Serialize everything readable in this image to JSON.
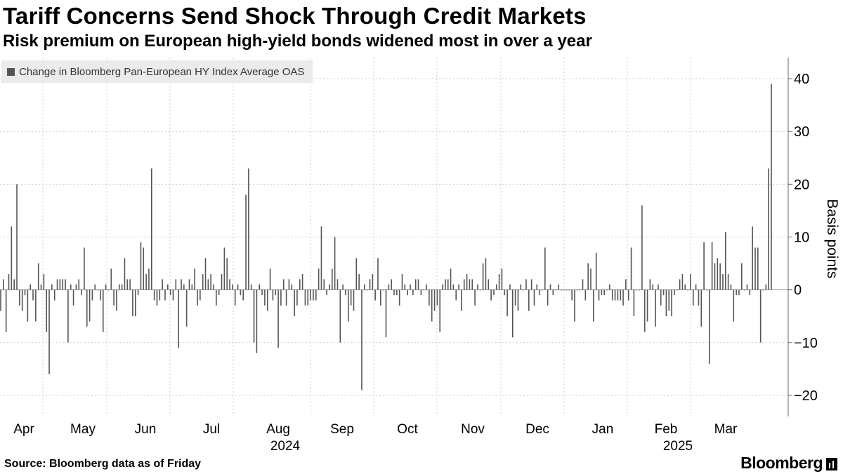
{
  "header": {
    "title": "Tariff Concerns Send Shock Through Credit Markets",
    "subtitle": "Risk premium on European high-yield bonds widened most in over a year"
  },
  "footer": {
    "source": "Source: Bloomberg data as of Friday",
    "brand": "Bloomberg"
  },
  "colors": {
    "bar": "#555555",
    "grid": "#cccccc",
    "axis": "#666666",
    "legend_bg": "#ebebeb"
  },
  "chart_data": {
    "type": "bar",
    "title": "Tariff Concerns Send Shock Through Credit Markets",
    "subtitle": "Risk premium on European high-yield bonds widened most in over a year",
    "series": [
      {
        "name": "Change in Bloomberg Pan-European HY Index Average OAS",
        "values": [
          -4,
          2,
          -8,
          3,
          12,
          2,
          20,
          -3,
          -4,
          -1,
          -6,
          1,
          -2,
          -6,
          5,
          1,
          3,
          -8,
          -16,
          1,
          -2,
          2,
          2,
          2,
          2,
          -10,
          1,
          -3,
          1,
          2,
          -1,
          8,
          -7,
          -6,
          -2,
          1,
          0,
          -2,
          -8,
          1,
          0,
          4,
          -3,
          -4,
          1,
          1,
          6,
          2,
          2,
          -5,
          -5,
          -1,
          9,
          8,
          3,
          4,
          23,
          -2,
          -3,
          -2,
          2,
          -2,
          1,
          -1,
          -2,
          2,
          -11,
          2,
          1,
          -7,
          2,
          1,
          4,
          -3,
          -2,
          3,
          6,
          2,
          3,
          1,
          -3,
          -1,
          3,
          8,
          6,
          2,
          1,
          -3,
          1,
          -1,
          -2,
          18,
          23,
          1,
          -10,
          -12,
          1,
          -1,
          -3,
          -4,
          4,
          -2,
          -1,
          -11,
          -3,
          2,
          -3,
          2,
          1,
          -5,
          -3,
          2,
          3,
          -3,
          -3,
          -2,
          -2,
          -2,
          4,
          12,
          2,
          -1,
          1,
          4,
          10,
          2,
          -10,
          1,
          -1,
          -6,
          -3,
          -4,
          6,
          3,
          -19,
          1,
          0,
          2,
          3,
          -2,
          6,
          -3,
          0,
          -9,
          1,
          2,
          -1,
          -1,
          -3,
          3,
          1,
          -1,
          1,
          -1,
          2,
          2,
          -1,
          0,
          1,
          -3,
          -6,
          -4,
          -3,
          -8,
          1,
          2,
          2,
          4,
          1,
          -2,
          1,
          -4,
          2,
          3,
          2,
          2,
          -3,
          1,
          0,
          5,
          6,
          2,
          -2,
          -1,
          1,
          3,
          4,
          -1,
          -5,
          1,
          -9,
          -3,
          -4,
          1,
          0,
          2,
          -4,
          2,
          -3,
          1,
          -1,
          0,
          8,
          -3,
          1,
          -1,
          0,
          1,
          0,
          0,
          0,
          0,
          -2,
          -6,
          0,
          0,
          2,
          -2,
          5,
          4,
          -6,
          7,
          -2,
          -1,
          -1,
          0,
          1,
          -2,
          -2,
          -2,
          -2,
          -3,
          2,
          -2,
          8,
          -5,
          0,
          0,
          16,
          -8,
          -6,
          2,
          1,
          -7,
          1,
          -3,
          -1,
          -5,
          -4,
          -5,
          -1,
          0,
          2,
          3,
          1,
          0,
          3,
          -3,
          1,
          -3,
          -7,
          9,
          0,
          -14,
          9,
          5,
          6,
          5,
          3,
          11,
          3,
          1,
          -6,
          -1,
          -1,
          5,
          0,
          1,
          -1,
          12,
          8,
          8,
          -10,
          0,
          1,
          23,
          39
        ]
      }
    ],
    "x_axis_labels": {
      "months": [
        "Apr",
        "May",
        "Jun",
        "Jul",
        "Aug",
        "Sep",
        "Oct",
        "Nov",
        "Dec",
        "Jan",
        "Feb",
        "Mar"
      ],
      "years": [
        "2024",
        "2025"
      ]
    },
    "y_ticks": [
      -20,
      -10,
      0,
      10,
      20,
      30,
      40
    ],
    "ylabel": "Basis points",
    "xlabel": "",
    "ylim": [
      -24,
      44
    ],
    "grid": true,
    "legend": "top-left"
  }
}
